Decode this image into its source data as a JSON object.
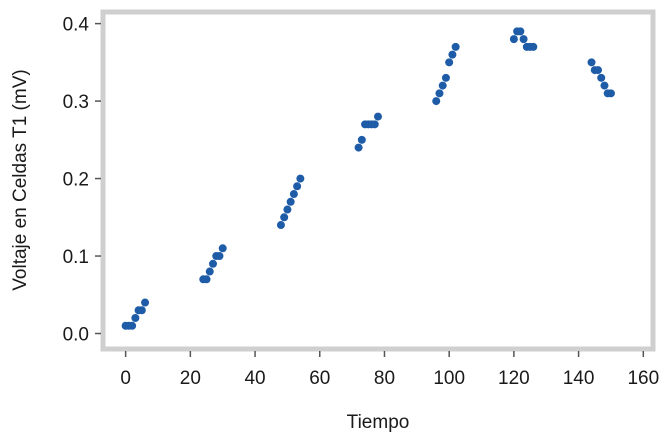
{
  "chart_data": {
    "type": "scatter",
    "title": "",
    "xlabel": "Tiempo",
    "ylabel": "Voltaje en Celdas T1 (mV)",
    "xlim": [
      -7,
      163
    ],
    "ylim": [
      -0.02,
      0.415
    ],
    "xticks": [
      "0",
      "20",
      "40",
      "60",
      "80",
      "100",
      "120",
      "140",
      "160"
    ],
    "yticks": [
      "0.0",
      "0.1",
      "0.2",
      "0.3",
      "0.4"
    ],
    "grid": false,
    "legend": "none",
    "marker_color": "#1f5ca8",
    "series": [
      {
        "points": [
          [
            0,
            0.01
          ],
          [
            1,
            0.01
          ],
          [
            2,
            0.01
          ],
          [
            3,
            0.02
          ],
          [
            4,
            0.03
          ],
          [
            5,
            0.03
          ],
          [
            6,
            0.04
          ],
          [
            24,
            0.07
          ],
          [
            25,
            0.07
          ],
          [
            26,
            0.08
          ],
          [
            27,
            0.09
          ],
          [
            28,
            0.1
          ],
          [
            29,
            0.1
          ],
          [
            30,
            0.11
          ],
          [
            48,
            0.14
          ],
          [
            49,
            0.15
          ],
          [
            50,
            0.16
          ],
          [
            51,
            0.17
          ],
          [
            52,
            0.18
          ],
          [
            53,
            0.19
          ],
          [
            54,
            0.2
          ],
          [
            72,
            0.24
          ],
          [
            73,
            0.25
          ],
          [
            74,
            0.27
          ],
          [
            75,
            0.27
          ],
          [
            76,
            0.27
          ],
          [
            77,
            0.27
          ],
          [
            78,
            0.28
          ],
          [
            96,
            0.3
          ],
          [
            97,
            0.31
          ],
          [
            98,
            0.32
          ],
          [
            99,
            0.33
          ],
          [
            100,
            0.35
          ],
          [
            101,
            0.36
          ],
          [
            102,
            0.37
          ],
          [
            120,
            0.38
          ],
          [
            121,
            0.39
          ],
          [
            122,
            0.39
          ],
          [
            123,
            0.38
          ],
          [
            124,
            0.37
          ],
          [
            125,
            0.37
          ],
          [
            126,
            0.37
          ],
          [
            144,
            0.35
          ],
          [
            145,
            0.34
          ],
          [
            146,
            0.34
          ],
          [
            147,
            0.33
          ],
          [
            148,
            0.32
          ],
          [
            149,
            0.31
          ],
          [
            150,
            0.31
          ]
        ]
      }
    ]
  }
}
